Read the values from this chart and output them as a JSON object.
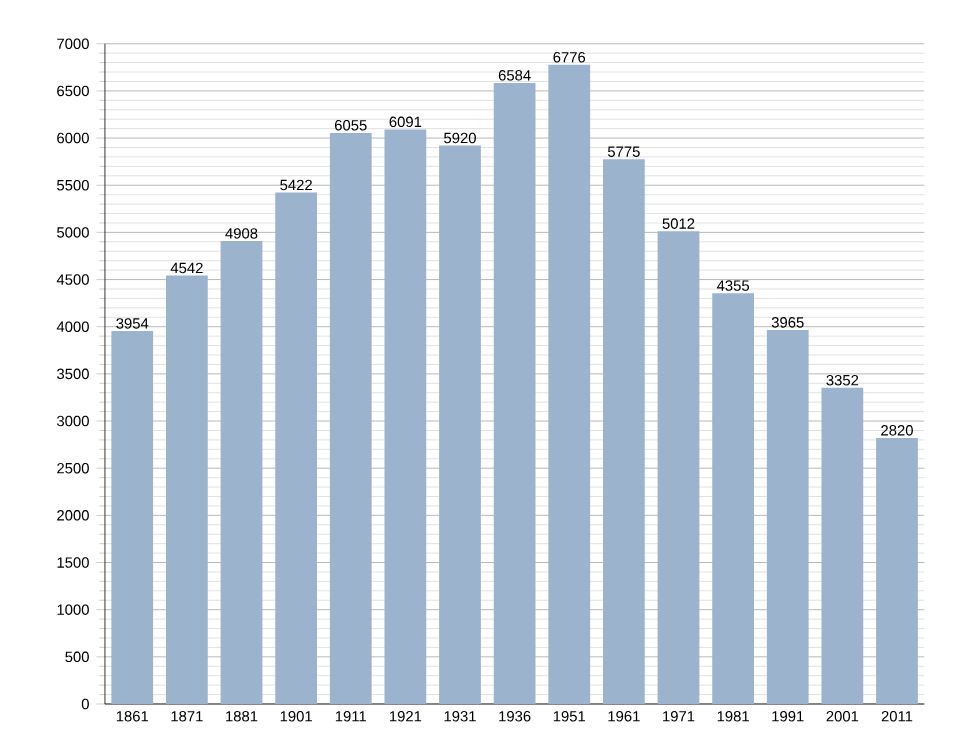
{
  "chart_data": {
    "type": "bar",
    "categories": [
      "1861",
      "1871",
      "1881",
      "1901",
      "1911",
      "1921",
      "1931",
      "1936",
      "1951",
      "1961",
      "1971",
      "1981",
      "1991",
      "2001",
      "2011"
    ],
    "values": [
      3954,
      4542,
      4908,
      5422,
      6055,
      6091,
      5920,
      6584,
      6776,
      5775,
      5012,
      4355,
      3965,
      3352,
      2820
    ],
    "color": "#9bb3cd",
    "ylim": [
      0,
      7000
    ],
    "yticks": [
      0,
      500,
      1000,
      1500,
      2000,
      2500,
      3000,
      3500,
      4000,
      4500,
      5000,
      5500,
      6000,
      6500,
      7000
    ],
    "grid": "y",
    "data_labels": true
  }
}
